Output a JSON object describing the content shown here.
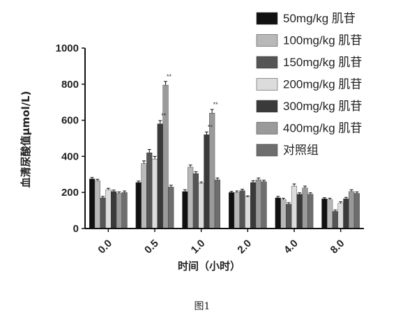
{
  "chart_data": {
    "type": "bar",
    "title": "",
    "xlabel": "时间（小时）",
    "ylabel": "血清尿酸值μmol/L)",
    "ylim": [
      0,
      1000
    ],
    "yticks": [
      0,
      200,
      400,
      600,
      800,
      1000
    ],
    "categories": [
      "0.0",
      "0.5",
      "1.0",
      "2.0",
      "4.0",
      "8.0"
    ],
    "legend_position": "top-right",
    "series": [
      {
        "name": "50mg/kg 肌苷",
        "color": "#111111",
        "values": [
          275,
          255,
          205,
          200,
          170,
          165
        ]
      },
      {
        "name": "100mg/kg 肌苷",
        "color": "#b8b8b8",
        "values": [
          265,
          360,
          340,
          200,
          160,
          160
        ]
      },
      {
        "name": "150mg/kg 肌苷",
        "color": "#555555",
        "values": [
          170,
          420,
          305,
          210,
          135,
          95
        ]
      },
      {
        "name": "200mg/kg 肌苷",
        "color": "#dcdcdc",
        "values": [
          215,
          385,
          250,
          175,
          235,
          140
        ]
      },
      {
        "name": "300mg/kg 肌苷",
        "color": "#3a3a3a",
        "values": [
          205,
          580,
          520,
          255,
          190,
          165
        ]
      },
      {
        "name": "400mg/kg 肌苷",
        "color": "#9a9a9a",
        "values": [
          195,
          795,
          640,
          270,
          225,
          205
        ]
      },
      {
        "name": "对照组",
        "color": "#6e6e6e",
        "values": [
          200,
          230,
          270,
          260,
          190,
          195
        ]
      }
    ],
    "errors": [
      [
        8,
        8,
        10,
        6,
        8,
        6
      ],
      [
        8,
        15,
        12,
        8,
        8,
        8
      ],
      [
        8,
        18,
        10,
        8,
        8,
        8
      ],
      [
        8,
        15,
        8,
        6,
        12,
        8
      ],
      [
        8,
        18,
        15,
        10,
        8,
        8
      ],
      [
        8,
        20,
        20,
        10,
        10,
        10
      ],
      [
        8,
        10,
        10,
        8,
        8,
        8
      ]
    ],
    "annotations": [
      {
        "text": "**",
        "category": "0.5",
        "series_index": 4
      },
      {
        "text": "**",
        "category": "0.5",
        "series_index": 5
      },
      {
        "text": "**",
        "category": "1.0",
        "series_index": 4
      },
      {
        "text": "**",
        "category": "1.0",
        "series_index": 5
      }
    ]
  },
  "caption": "图1"
}
